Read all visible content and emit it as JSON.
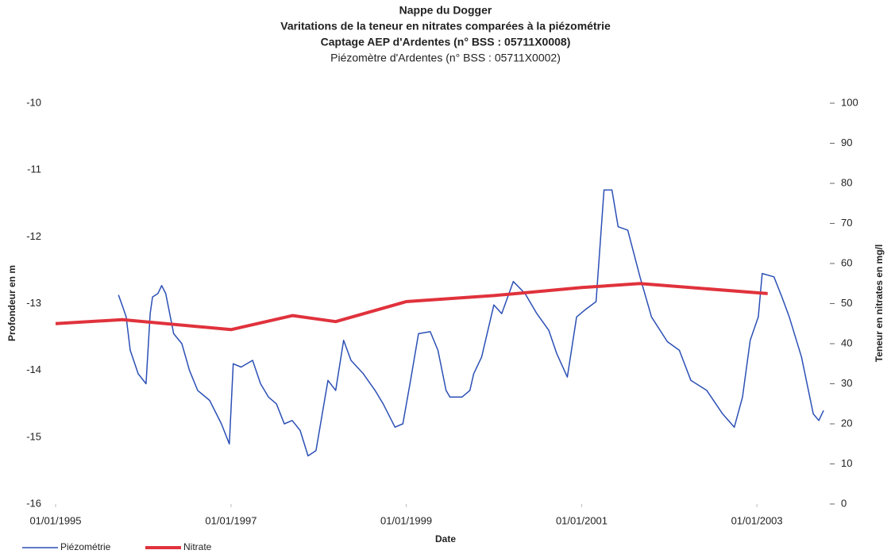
{
  "chart_data": {
    "type": "line",
    "title": "Nappe du Dogger",
    "subtitle": [
      "Varitations de la teneur en nitrates comparées à la piézométrie",
      "Captage AEP  d'Ardentes (n° BSS  : 05711X0008)"
    ],
    "note": "Piézomètre d'Ardentes (n° BSS : 05711X0002)",
    "x_label": "Date",
    "y_label": "Profondeur en m",
    "y2_label": "Teneur en nitrates en mg/l",
    "xlim": [
      "1995-01-01",
      "2003-11-01"
    ],
    "xticks": [
      {
        "value": "1995-01-01",
        "label": "01/01/1995"
      },
      {
        "value": "1997-01-01",
        "label": "01/01/1997"
      },
      {
        "value": "1999-01-01",
        "label": "01/01/1999"
      },
      {
        "value": "2001-01-01",
        "label": "01/01/2001"
      },
      {
        "value": "2003-01-01",
        "label": "01/01/2003"
      }
    ],
    "ylim": [
      -16,
      -10
    ],
    "yticks": [
      -16,
      -15,
      -14,
      -13,
      -12,
      -11,
      -10
    ],
    "y2lim": [
      0,
      100
    ],
    "y2ticks": [
      0,
      10,
      20,
      30,
      40,
      50,
      60,
      70,
      80,
      90,
      100
    ],
    "grid": false,
    "legend": "bottom-left",
    "series": [
      {
        "name": "Piézométrie",
        "color": "#2b4fb5",
        "axis": "y",
        "x": [
          "1995-09-20",
          "1995-10-06",
          "1995-10-22",
          "1995-11-08",
          "1995-12-11",
          "1996-01-13",
          "1996-01-30",
          "1996-02-09",
          "1996-03-02",
          "1996-03-18",
          "1996-04-04",
          "1996-05-07",
          "1996-06-10",
          "1996-07-12",
          "1996-08-15",
          "1996-10-04",
          "1996-11-22",
          "1996-12-25",
          "1997-01-10",
          "1997-02-12",
          "1997-04-01",
          "1997-05-04",
          "1997-06-06",
          "1997-07-09",
          "1997-08-11",
          "1997-09-13",
          "1997-10-16",
          "1997-11-18",
          "1997-12-21",
          "1998-02-09",
          "1998-03-13",
          "1998-04-15",
          "1998-05-16",
          "1998-07-06",
          "1998-08-24",
          "1998-09-27",
          "1998-11-15",
          "1998-12-18",
          "1999-01-19",
          "1999-02-21",
          "1999-04-11",
          "1999-05-13",
          "1999-06-16",
          "1999-07-02",
          "1999-08-21",
          "1999-09-23",
          "1999-10-09",
          "1999-11-11",
          "2000-01-01",
          "2000-02-03",
          "2000-03-22",
          "2000-05-10",
          "2000-06-28",
          "2000-08-17",
          "2000-09-19",
          "2000-11-02",
          "2000-12-11",
          "2001-01-13",
          "2001-03-02",
          "2001-04-04",
          "2001-05-07",
          "2001-06-02",
          "2001-07-12",
          "2001-09-01",
          "2001-10-19",
          "2001-12-24",
          "2002-02-12",
          "2002-04-01",
          "2002-06-06",
          "2002-08-11",
          "2002-09-29",
          "2002-11-02",
          "2002-12-04",
          "2003-01-07",
          "2003-01-23",
          "2003-03-13",
          "2003-04-15",
          "2003-05-16",
          "2003-07-06",
          "2003-08-24",
          "2003-09-16",
          "2003-10-06"
        ],
        "values": [
          -12.87,
          -13.03,
          -13.2,
          -13.7,
          -14.05,
          -14.2,
          -13.15,
          -12.9,
          -12.85,
          -12.73,
          -12.85,
          -13.45,
          -13.6,
          -14,
          -14.3,
          -14.45,
          -14.8,
          -15.1,
          -13.9,
          -13.95,
          -13.85,
          -14.2,
          -14.4,
          -14.5,
          -14.8,
          -14.75,
          -14.9,
          -15.28,
          -15.2,
          -14.15,
          -14.3,
          -13.55,
          -13.85,
          -14.05,
          -14.3,
          -14.5,
          -14.85,
          -14.8,
          -14.15,
          -13.45,
          -13.42,
          -13.7,
          -14.3,
          -14.4,
          -14.4,
          -14.3,
          -14.05,
          -13.8,
          -13.02,
          -13.15,
          -12.67,
          -12.85,
          -13.15,
          -13.4,
          -13.75,
          -14.1,
          -13.2,
          -13.1,
          -12.97,
          -11.3,
          -11.3,
          -11.85,
          -11.9,
          -12.6,
          -13.2,
          -13.57,
          -13.7,
          -14.15,
          -14.3,
          -14.65,
          -14.85,
          -14.4,
          -13.55,
          -13.2,
          -12.55,
          -12.6,
          -12.9,
          -13.2,
          -13.8,
          -14.65,
          -14.75,
          -14.6
        ]
      },
      {
        "name": "Nitrate",
        "color": "#e0323c",
        "axis": "y2",
        "x": [
          "1995-01-01",
          "1995-10-06",
          "1997-01-01",
          "1997-09-15",
          "1998-03-13",
          "1999-01-01",
          "2000-01-01",
          "2001-01-01",
          "2001-09-01",
          "2003-02-15"
        ],
        "values": [
          45,
          46,
          43.5,
          47,
          45.5,
          50.5,
          52,
          54,
          55,
          52.5
        ]
      }
    ]
  }
}
